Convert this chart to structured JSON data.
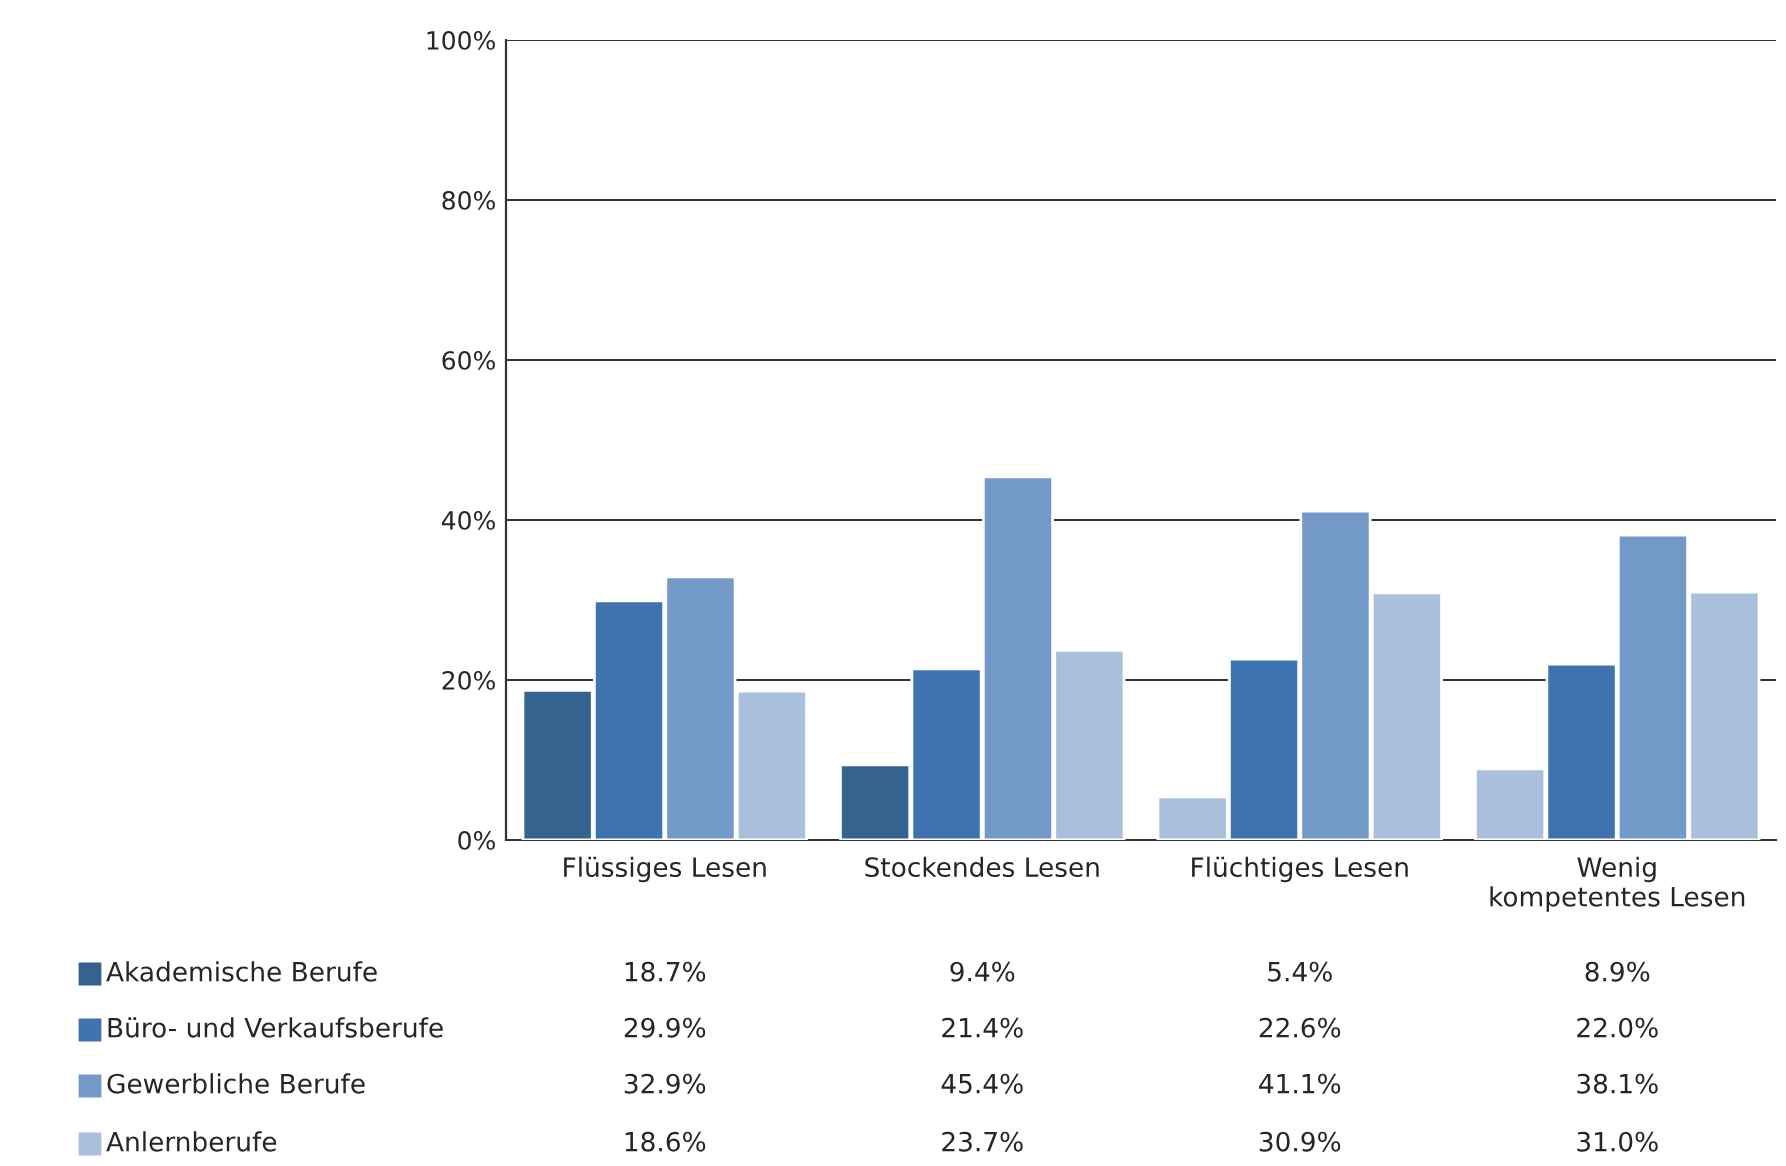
{
  "chart_data": {
    "type": "bar",
    "categories": [
      "Flüssiges Lesen",
      "Stockendes Lesen",
      "Flüchtiges Lesen",
      "Wenig\nkompetentes Lesen"
    ],
    "series": [
      {
        "name": "Akademische Berufe",
        "color": "#35628f",
        "colors": [
          "#35628f",
          "#35628f",
          "#a9bfdc",
          "#a9bfdc"
        ],
        "values": [
          18.7,
          9.4,
          5.4,
          8.9
        ],
        "value_labels": [
          "18.7%",
          "9.4%",
          "5.4%",
          "8.9%"
        ]
      },
      {
        "name": "Büro- und Verkaufsberufe",
        "color": "#3f73b0",
        "values": [
          29.9,
          21.4,
          22.6,
          22.0
        ],
        "value_labels": [
          "29.9%",
          "21.4%",
          "22.6%",
          "22.0%"
        ]
      },
      {
        "name": "Gewerbliche Berufe",
        "color": "#7399c9",
        "values": [
          32.9,
          45.4,
          41.1,
          38.1
        ],
        "value_labels": [
          "32.9%",
          "45.4%",
          "41.1%",
          "38.1%"
        ]
      },
      {
        "name": "Anlernberufe",
        "color": "#a9bfdc",
        "values": [
          18.6,
          23.7,
          30.9,
          31.0
        ],
        "value_labels": [
          "18.6%",
          "23.7%",
          "30.9%",
          "31.0%"
        ]
      }
    ],
    "ylim": [
      0,
      100
    ],
    "yticks": [
      {
        "value": 0,
        "label": "0%"
      },
      {
        "value": 20,
        "label": "20%"
      },
      {
        "value": 40,
        "label": "40%"
      },
      {
        "value": 60,
        "label": "60%"
      },
      {
        "value": 80,
        "label": "80%"
      },
      {
        "value": 100,
        "label": "100%"
      }
    ],
    "grid": "y",
    "legend": "bottom left"
  }
}
